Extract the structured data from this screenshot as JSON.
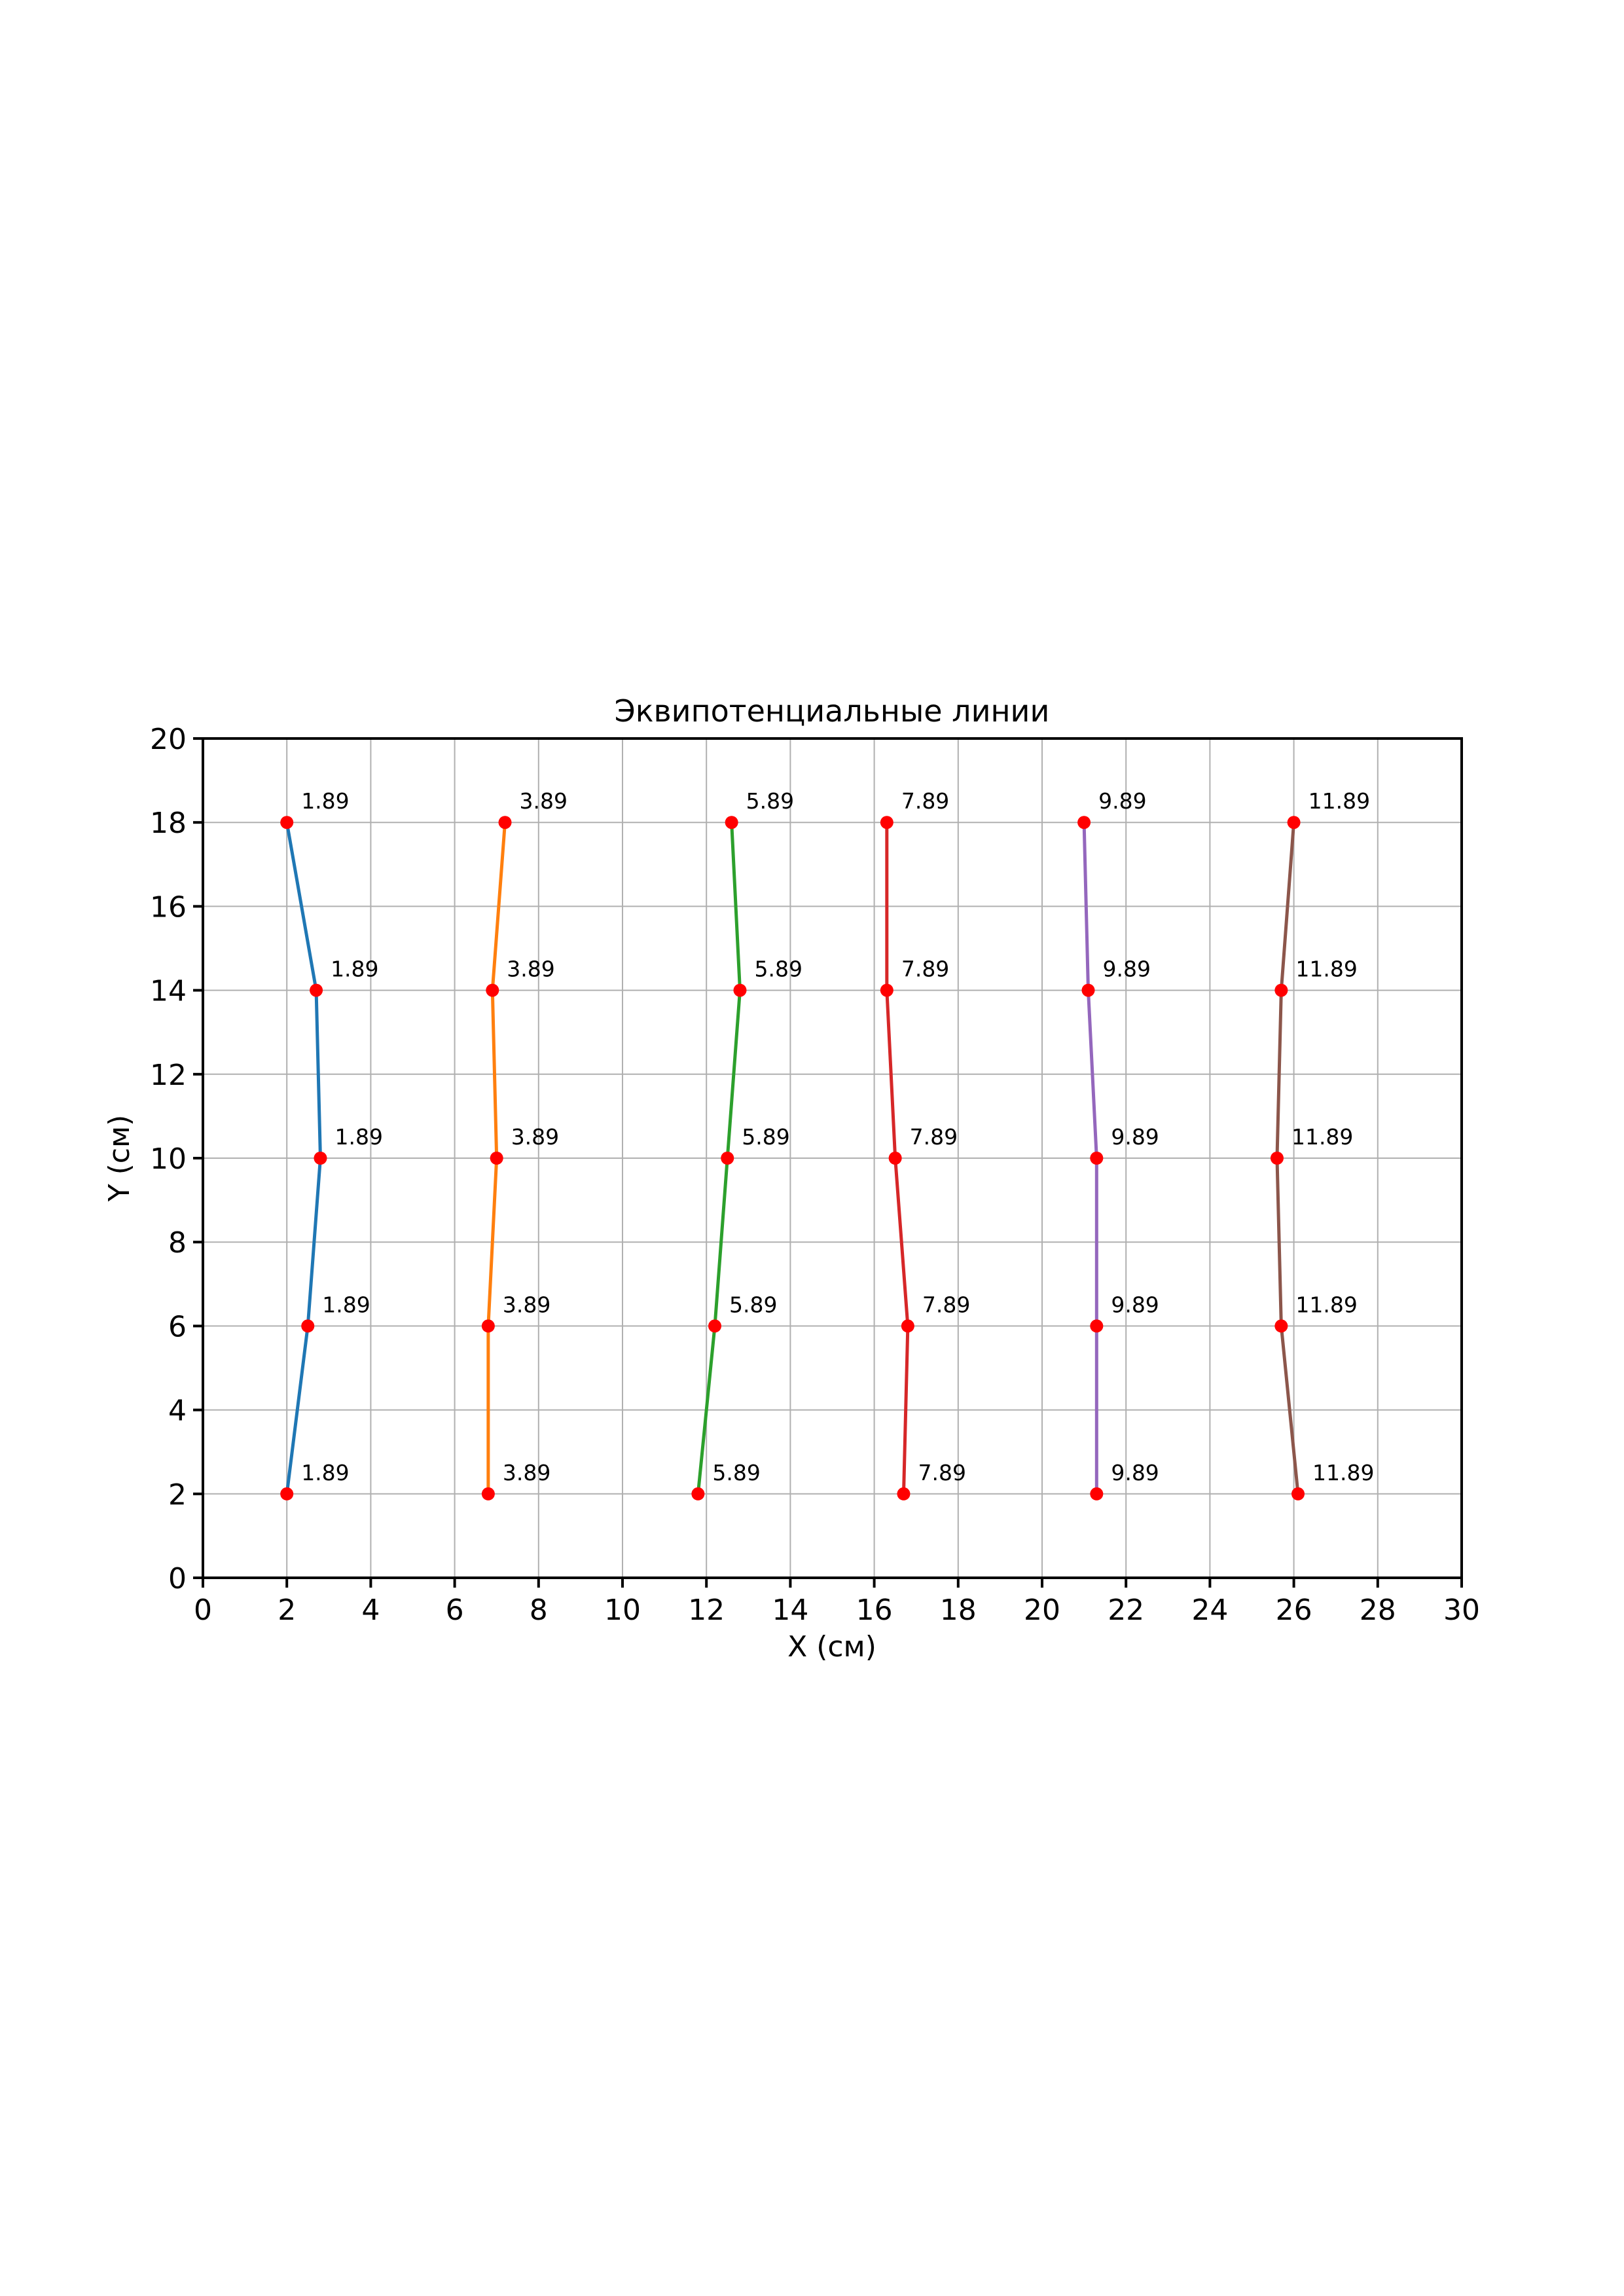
{
  "page": {
    "background": "#ffffff"
  },
  "chart_data": {
    "type": "line",
    "title": "Эквипотенциальные линии",
    "xlabel": "X (см)",
    "ylabel": "Y (см)",
    "xlim": [
      0,
      30
    ],
    "ylim": [
      0,
      20
    ],
    "xticks": [
      0,
      2,
      4,
      6,
      8,
      10,
      12,
      14,
      16,
      18,
      20,
      22,
      24,
      26,
      28,
      30
    ],
    "yticks": [
      0,
      2,
      4,
      6,
      8,
      10,
      12,
      14,
      16,
      18,
      20
    ],
    "grid": true,
    "grid_color": "#b0b0b0",
    "axis_color": "#000000",
    "marker_color": "#ff0000",
    "marker_shape": "circle",
    "legend_position": "none",
    "series": [
      {
        "name": "1.89",
        "color": "#1f77b4",
        "points": [
          [
            2.0,
            2
          ],
          [
            2.5,
            6
          ],
          [
            2.8,
            10
          ],
          [
            2.7,
            14
          ],
          [
            2.0,
            18
          ]
        ],
        "point_labels": [
          "1.89",
          "1.89",
          "1.89",
          "1.89",
          "1.89"
        ]
      },
      {
        "name": "3.89",
        "color": "#ff7f0e",
        "points": [
          [
            6.8,
            2
          ],
          [
            6.8,
            6
          ],
          [
            7.0,
            10
          ],
          [
            6.9,
            14
          ],
          [
            7.2,
            18
          ]
        ],
        "point_labels": [
          "3.89",
          "3.89",
          "3.89",
          "3.89",
          "3.89"
        ]
      },
      {
        "name": "5.89",
        "color": "#2ca02c",
        "points": [
          [
            11.8,
            2
          ],
          [
            12.2,
            6
          ],
          [
            12.5,
            10
          ],
          [
            12.8,
            14
          ],
          [
            12.6,
            18
          ]
        ],
        "point_labels": [
          "5.89",
          "5.89",
          "5.89",
          "5.89",
          "5.89"
        ]
      },
      {
        "name": "7.89",
        "color": "#d62728",
        "points": [
          [
            16.7,
            2
          ],
          [
            16.8,
            6
          ],
          [
            16.5,
            10
          ],
          [
            16.3,
            14
          ],
          [
            16.3,
            18
          ]
        ],
        "point_labels": [
          "7.89",
          "7.89",
          "7.89",
          "7.89",
          "7.89"
        ]
      },
      {
        "name": "9.89",
        "color": "#9467bd",
        "points": [
          [
            21.3,
            2
          ],
          [
            21.3,
            6
          ],
          [
            21.3,
            10
          ],
          [
            21.1,
            14
          ],
          [
            21.0,
            18
          ]
        ],
        "point_labels": [
          "9.89",
          "9.89",
          "9.89",
          "9.89",
          "9.89"
        ]
      },
      {
        "name": "11.89",
        "color": "#8c564b",
        "points": [
          [
            26.1,
            2
          ],
          [
            25.7,
            6
          ],
          [
            25.6,
            10
          ],
          [
            25.7,
            14
          ],
          [
            26.0,
            18
          ]
        ],
        "point_labels": [
          "11.89",
          "11.89",
          "11.89",
          "11.89",
          "11.89"
        ]
      }
    ]
  }
}
